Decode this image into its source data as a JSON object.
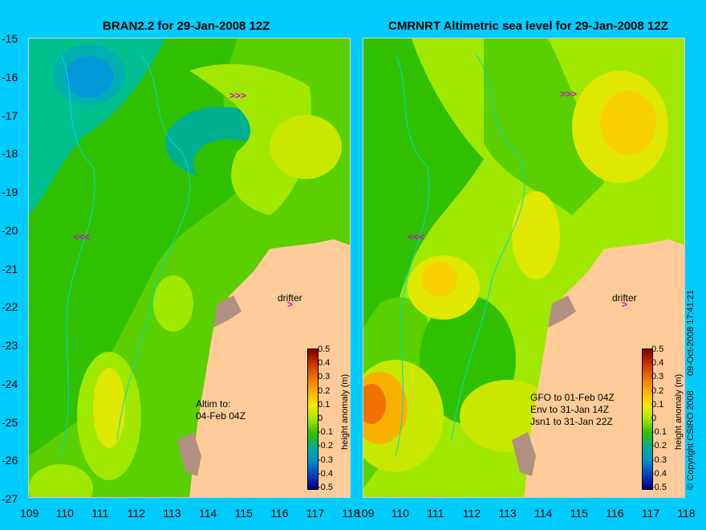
{
  "panels": [
    {
      "title": "BRAN2.2 for 29-Jan-2008 12Z",
      "note": [
        "Altim to:",
        "04-Feb 04Z"
      ],
      "drifter": "drifter"
    },
    {
      "title": "CMRNRT Altimetric sea level  for 29-Jan-2008 12Z",
      "note": [
        "GFO to 01-Feb 04Z",
        "Env to 31-Jan 14Z",
        "Jsn1 to 31-Jan 22Z"
      ],
      "drifter": "drifter"
    }
  ],
  "axes": {
    "lat_ticks": [
      "-15",
      "-16",
      "-17",
      "-18",
      "-19",
      "-20",
      "-21",
      "-22",
      "-23",
      "-24",
      "-25",
      "-26",
      "-27"
    ],
    "lon_ticks": [
      "109",
      "110",
      "111",
      "112",
      "113",
      "114",
      "115",
      "116",
      "117",
      "118"
    ]
  },
  "colorbar": {
    "title": "height anomaly (m)",
    "ticks": [
      "0.5",
      "0.4",
      "0.3",
      "0.2",
      "0.1",
      "0",
      "-0.1",
      "-0.2",
      "-0.3",
      "-0.4",
      "-0.5"
    ],
    "colors": [
      "#7a0000",
      "#c83000",
      "#f07000",
      "#f8b000",
      "#f8e800",
      "#a0e800",
      "#30c000",
      "#00b090",
      "#0090d0",
      "#0040c0",
      "#000080"
    ]
  },
  "copyright": "© Copyright CSIRO 2008",
  "timestamp": "09-Oct-2008 17:41:21",
  "colors": {
    "background": "#00ccff",
    "land": "#ffcc99",
    "shelf": "#00e0e0",
    "drifter_arrow": "#e000e0"
  }
}
